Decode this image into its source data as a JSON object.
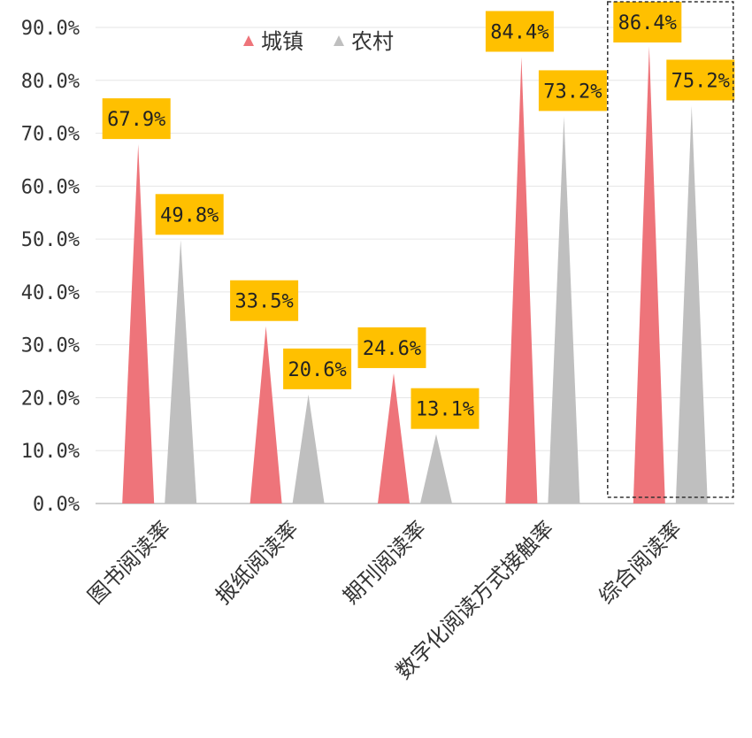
{
  "chart_data": {
    "type": "bar",
    "mark_shape": "triangle",
    "title": "",
    "xlabel": "",
    "ylabel": "",
    "categories": [
      "图书阅读率",
      "报纸阅读率",
      "期刊阅读率",
      "数字化阅读方式接触率",
      "综合阅读率"
    ],
    "series": [
      {
        "name": "城镇",
        "values": [
          67.9,
          33.5,
          24.6,
          84.4,
          86.4
        ],
        "color": "#EE747A",
        "labels": [
          "67.9%",
          "33.5%",
          "24.6%",
          "84.4%",
          "86.4%"
        ]
      },
      {
        "name": "农村",
        "values": [
          49.8,
          20.6,
          13.1,
          73.2,
          75.2
        ],
        "color": "#BFBFBF",
        "labels": [
          "49.8%",
          "20.6%",
          "13.1%",
          "73.2%",
          "75.2%"
        ]
      }
    ],
    "ylim": [
      0,
      90
    ],
    "yticks": [
      0,
      10,
      20,
      30,
      40,
      50,
      60,
      70,
      80,
      90
    ],
    "ytick_labels": [
      "0.0%",
      "10.0%",
      "20.0%",
      "30.0%",
      "40.0%",
      "50.0%",
      "60.0%",
      "70.0%",
      "80.0%",
      "90.0%"
    ],
    "grid": true,
    "legend_position": "top-center",
    "label_box_color": "#FFC000",
    "highlighted_category": "综合阅读率"
  }
}
